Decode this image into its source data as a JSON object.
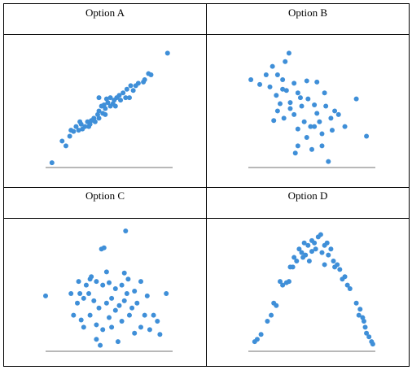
{
  "chart_data": [
    {
      "type": "scatter",
      "title": "Option A",
      "color": "#3f8fd8",
      "xlim": [
        0,
        100
      ],
      "ylim": [
        0,
        100
      ],
      "x": [
        5,
        13,
        16,
        19,
        22,
        24,
        26,
        28,
        29,
        31,
        33,
        34,
        36,
        38,
        39,
        41,
        42,
        42,
        44,
        45,
        46,
        47,
        48,
        49,
        51,
        51,
        53,
        54,
        55,
        56,
        58,
        59,
        61,
        63,
        64,
        66,
        67,
        69,
        71,
        73,
        77,
        78,
        81,
        83,
        96,
        42,
        47,
        35,
        27,
        20
      ],
      "values": [
        4,
        22,
        18,
        26,
        30,
        34,
        31,
        36,
        32,
        34,
        38,
        34,
        39,
        41,
        38,
        44,
        47,
        41,
        51,
        45,
        52,
        49,
        57,
        54,
        51,
        58,
        53,
        56,
        51,
        58,
        60,
        56,
        62,
        58,
        65,
        58,
        68,
        64,
        68,
        70,
        71,
        73,
        78,
        77,
        95,
        58,
        44,
        36,
        38,
        31
      ]
    },
    {
      "type": "scatter",
      "title": "Option B",
      "color": "#3f8fd8",
      "xlim": [
        0,
        100
      ],
      "ylim": [
        0,
        100
      ],
      "x": [
        32,
        29,
        19,
        2,
        9,
        14,
        23,
        27,
        36,
        46,
        54,
        17,
        22,
        30,
        39,
        25,
        33,
        42,
        52,
        61,
        68,
        20,
        28,
        36,
        44,
        49,
        56,
        65,
        71,
        85,
        93,
        76,
        39,
        46,
        52,
        58,
        66,
        39,
        50,
        63,
        37,
        58,
        27,
        47,
        54,
        33,
        23,
        41,
        60
      ],
      "values": [
        95,
        88,
        84,
        73,
        69,
        77,
        77,
        73,
        70,
        72,
        71,
        67,
        60,
        64,
        62,
        53,
        54,
        51,
        52,
        51,
        47,
        39,
        41,
        44,
        38,
        34,
        38,
        41,
        44,
        57,
        26,
        34,
        32,
        25,
        34,
        28,
        31,
        18,
        15,
        5,
        12,
        18,
        65,
        57,
        45,
        49,
        47,
        58,
        62
      ]
    },
    {
      "type": "scatter",
      "title": "Option C",
      "color": "#3f8fd8",
      "xlim": [
        0,
        100
      ],
      "ylim": [
        0,
        100
      ],
      "x": [
        0,
        63,
        44,
        46,
        27,
        32,
        35,
        40,
        45,
        50,
        55,
        60,
        65,
        70,
        75,
        20,
        25,
        30,
        38,
        42,
        48,
        52,
        58,
        62,
        68,
        72,
        80,
        85,
        95,
        22,
        28,
        35,
        40,
        50,
        55,
        60,
        66,
        75,
        82,
        90,
        88,
        30,
        45,
        52,
        40,
        57,
        43,
        70,
        62,
        48,
        36,
        26,
        78,
        34,
        64
      ],
      "values": [
        46,
        100,
        85,
        86,
        48,
        55,
        60,
        58,
        55,
        57,
        52,
        55,
        60,
        50,
        58,
        48,
        40,
        44,
        42,
        36,
        40,
        44,
        38,
        42,
        36,
        40,
        46,
        30,
        48,
        30,
        26,
        30,
        22,
        28,
        34,
        25,
        30,
        20,
        18,
        14,
        25,
        20,
        18,
        20,
        10,
        8,
        5,
        15,
        65,
        66,
        62,
        58,
        30,
        48,
        48
      ]
    },
    {
      "type": "scatter",
      "title": "Option D",
      "color": "#3f8fd8",
      "xlim": [
        0,
        100
      ],
      "ylim": [
        0,
        100
      ],
      "x": [
        5,
        7,
        10,
        15,
        18,
        20,
        22,
        25,
        27,
        30,
        32,
        35,
        36,
        38,
        40,
        42,
        44,
        45,
        47,
        48,
        50,
        52,
        53,
        55,
        57,
        58,
        60,
        62,
        63,
        65,
        67,
        68,
        70,
        72,
        74,
        76,
        78,
        80,
        85,
        87,
        88,
        90,
        91,
        92,
        93,
        95,
        97,
        98,
        43,
        60,
        33,
        50
      ],
      "values": [
        8,
        10,
        14,
        25,
        30,
        40,
        38,
        58,
        55,
        57,
        58,
        70,
        78,
        75,
        85,
        82,
        90,
        80,
        88,
        75,
        92,
        90,
        85,
        95,
        97,
        82,
        88,
        90,
        80,
        85,
        75,
        70,
        72,
        68,
        60,
        62,
        55,
        52,
        40,
        30,
        35,
        28,
        25,
        20,
        15,
        12,
        8,
        6,
        78,
        72,
        70,
        83
      ]
    }
  ]
}
